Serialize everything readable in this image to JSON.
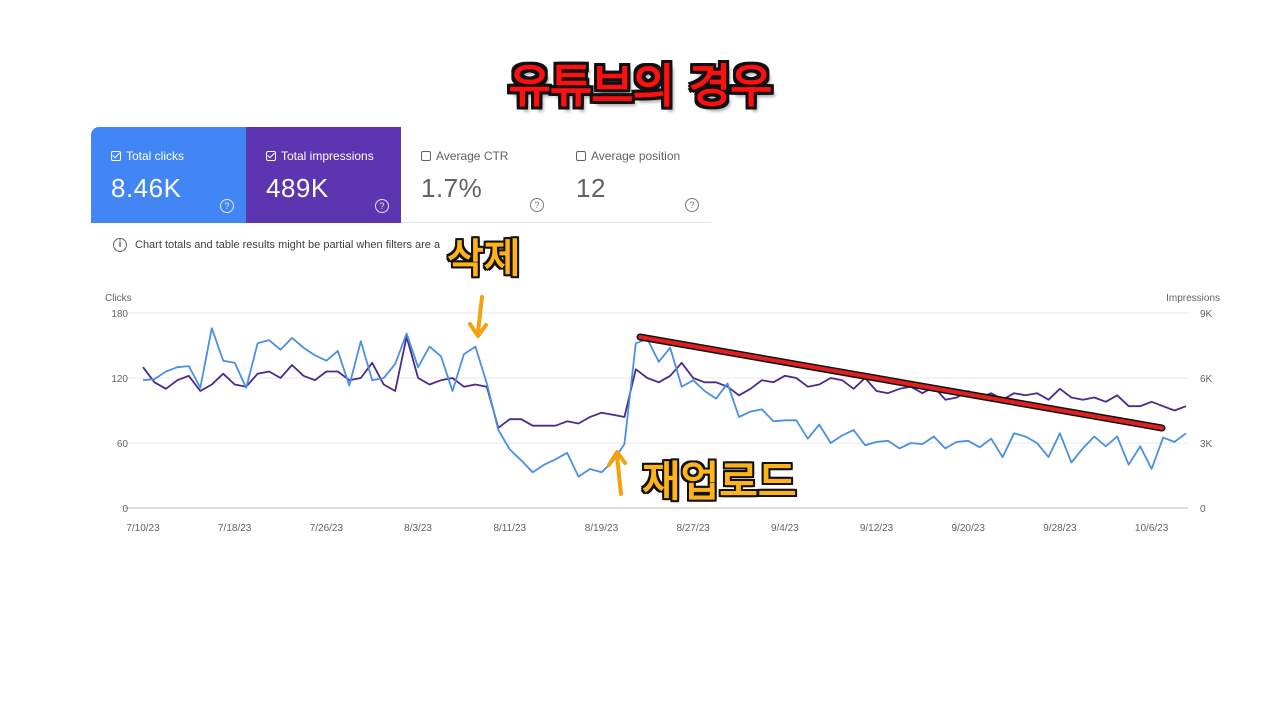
{
  "headline": "유튜브의 경우",
  "metrics": [
    {
      "label": "Total clicks",
      "value": "8.46K",
      "checked": true,
      "color": "#4285f4"
    },
    {
      "label": "Total impressions",
      "value": "489K",
      "checked": true,
      "color": "#5e35b1"
    },
    {
      "label": "Average CTR",
      "value": "1.7%",
      "checked": false,
      "color": "#ffffff"
    },
    {
      "label": "Average position",
      "value": "12",
      "checked": false,
      "color": "#ffffff"
    }
  ],
  "notice": "Chart totals and table results might be partial when filters are a",
  "annotations": {
    "delete": "삭제",
    "reupload": "재업로드"
  },
  "chart_data": {
    "type": "line",
    "left_axis": {
      "label": "Clicks",
      "ticks": [
        "180",
        "120",
        "60",
        "0"
      ],
      "range": [
        0,
        180
      ]
    },
    "right_axis": {
      "label": "Impressions",
      "ticks": [
        "9K",
        "6K",
        "3K",
        "0"
      ],
      "range": [
        0,
        9000
      ]
    },
    "x_ticks": [
      "7/10/23",
      "7/18/23",
      "7/26/23",
      "8/3/23",
      "8/11/23",
      "8/19/23",
      "8/27/23",
      "9/4/23",
      "9/12/23",
      "9/20/23",
      "9/28/23",
      "10/6/23"
    ],
    "x_start": "2023-07-10",
    "series": [
      {
        "axis": "left",
        "color": "#4a90e2",
        "values": [
          118,
          119,
          126,
          130,
          131,
          111,
          166,
          136,
          134,
          111,
          152,
          155,
          146,
          157,
          148,
          141,
          136,
          145,
          113,
          154,
          118,
          120,
          133,
          161,
          130,
          149,
          140,
          108,
          142,
          149,
          115,
          72,
          54,
          44,
          33,
          40,
          45,
          51,
          29,
          36,
          33,
          43,
          59,
          152,
          156,
          135,
          148,
          112,
          118,
          108,
          101,
          115,
          84,
          89,
          91,
          80,
          81,
          81,
          64,
          77,
          60,
          67,
          72,
          58,
          61,
          62,
          55,
          60,
          59,
          66,
          55,
          61,
          62,
          56,
          64,
          47,
          69,
          66,
          60,
          47,
          69,
          42,
          55,
          66,
          57,
          66,
          40,
          57,
          36,
          65,
          61,
          69
        ]
      },
      {
        "axis": "right",
        "color": "#4a2a8c",
        "values": [
          6500,
          5800,
          5500,
          5900,
          6100,
          5400,
          5700,
          6200,
          5700,
          5600,
          6200,
          6300,
          6000,
          6600,
          6100,
          5900,
          6300,
          6300,
          5900,
          6000,
          6700,
          5700,
          5400,
          7900,
          6000,
          5700,
          5900,
          6000,
          5600,
          5700,
          5600,
          3700,
          4100,
          4100,
          3800,
          3800,
          3800,
          4000,
          3900,
          4200,
          4400,
          4300,
          4200,
          6400,
          6000,
          5800,
          6100,
          6700,
          6000,
          5800,
          5800,
          5600,
          5200,
          5500,
          5900,
          5800,
          6100,
          6000,
          5600,
          5700,
          6000,
          5900,
          5500,
          6000,
          5400,
          5300,
          5500,
          5600,
          5300,
          5600,
          5000,
          5100,
          5400,
          5100,
          5300,
          5000,
          5300,
          5200,
          5300,
          5000,
          5500,
          5100,
          5000,
          5100,
          4900,
          5200,
          4700,
          4700,
          4900,
          4700,
          4500,
          4700
        ]
      }
    ]
  }
}
